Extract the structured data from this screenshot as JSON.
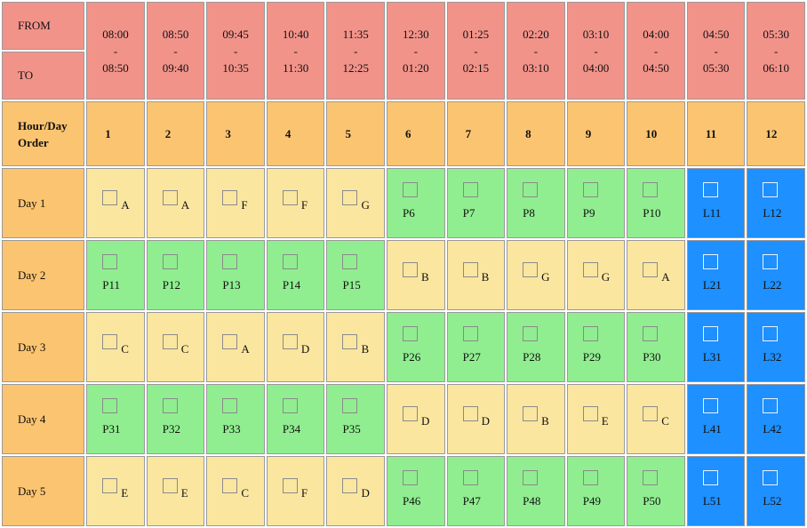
{
  "header": {
    "from_label": "FROM",
    "to_label": "TO",
    "hour_day_label": "Hour/Day Order",
    "slots": [
      {
        "from": "08:00",
        "sep": "-",
        "to": "08:50"
      },
      {
        "from": "08:50",
        "sep": "-",
        "to": "09:40"
      },
      {
        "from": "09:45",
        "sep": "-",
        "to": "10:35"
      },
      {
        "from": "10:40",
        "sep": "-",
        "to": "11:30"
      },
      {
        "from": "11:35",
        "sep": "-",
        "to": "12:25"
      },
      {
        "from": "12:30",
        "sep": "-",
        "to": "01:20"
      },
      {
        "from": "01:25",
        "sep": "-",
        "to": "02:15"
      },
      {
        "from": "02:20",
        "sep": "-",
        "to": "03:10"
      },
      {
        "from": "03:10",
        "sep": "-",
        "to": "04:00"
      },
      {
        "from": "04:00",
        "sep": "-",
        "to": "04:50"
      },
      {
        "from": "04:50",
        "sep": "-",
        "to": "05:30"
      },
      {
        "from": "05:30",
        "sep": "-",
        "to": "06:10"
      }
    ],
    "hours": [
      "1",
      "2",
      "3",
      "4",
      "5",
      "6",
      "7",
      "8",
      "9",
      "10",
      "11",
      "12"
    ]
  },
  "days": [
    {
      "label": "Day 1",
      "cells": [
        "A",
        "A",
        "F",
        "F",
        "G",
        "P6",
        "P7",
        "P8",
        "P9",
        "P10",
        "L11",
        "L12"
      ]
    },
    {
      "label": "Day 2",
      "cells": [
        "P11",
        "P12",
        "P13",
        "P14",
        "P15",
        "B",
        "B",
        "G",
        "G",
        "A",
        "L21",
        "L22"
      ]
    },
    {
      "label": "Day 3",
      "cells": [
        "C",
        "C",
        "A",
        "D",
        "B",
        "P26",
        "P27",
        "P28",
        "P29",
        "P30",
        "L31",
        "L32"
      ]
    },
    {
      "label": "Day 4",
      "cells": [
        "P31",
        "P32",
        "P33",
        "P34",
        "P35",
        "D",
        "D",
        "B",
        "E",
        "C",
        "L41",
        "L42"
      ]
    },
    {
      "label": "Day 5",
      "cells": [
        "E",
        "E",
        "C",
        "F",
        "D",
        "P46",
        "P47",
        "P48",
        "P49",
        "P50",
        "L51",
        "L52"
      ]
    }
  ],
  "colors": {
    "time_header": "#f2938a",
    "hour_header": "#fbc471",
    "theory_slot": "#fbe6a0",
    "practical_slot": "#90ee90",
    "lab_slot": "#1e90ff"
  }
}
